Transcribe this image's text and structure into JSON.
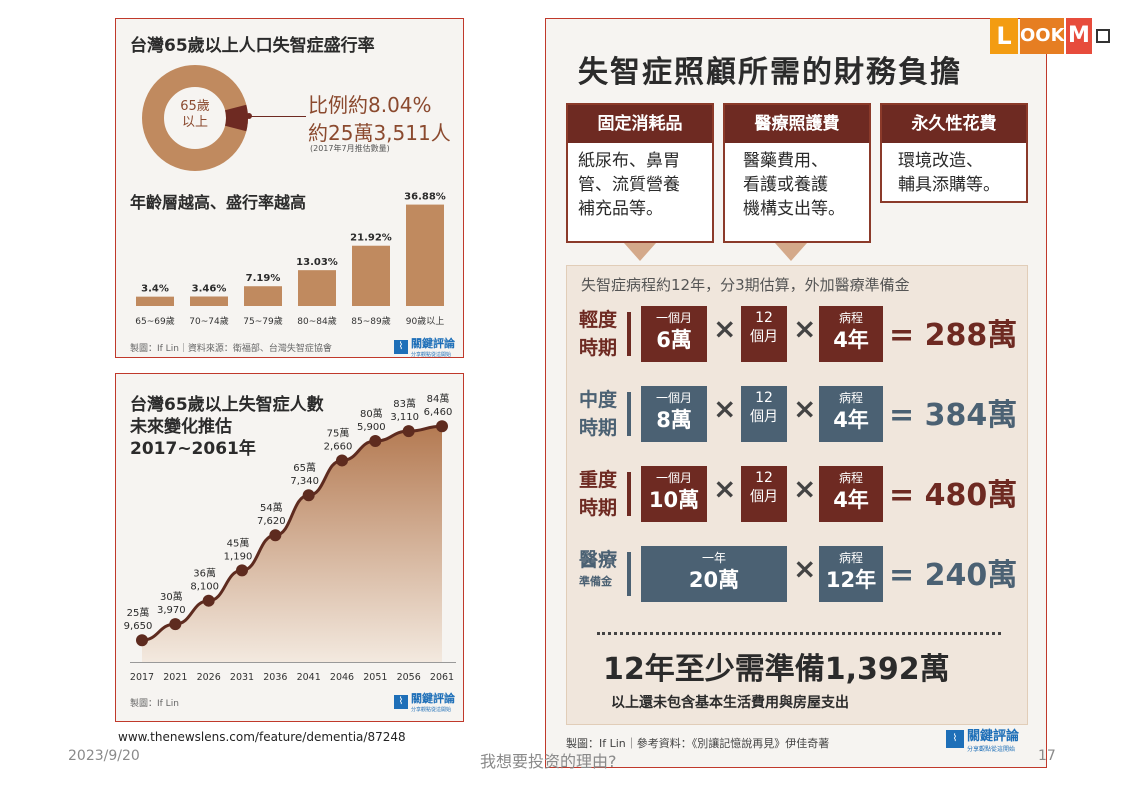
{
  "panel1": {
    "title": "台灣65歲以上人口失智症盛行率",
    "donut_center_label": "65歲\n以上",
    "ratio_text": "比例約8.04%",
    "count_text": "約25萬3,511人",
    "estimate_note": "(2017年7月推估數量)",
    "subtitle": "年齡層越高、盛行率越高",
    "footer": "製圖：If Lin｜資料來源：衛福部、台灣失智症協會",
    "logo_name": "關鍵評論",
    "logo_sub": "分享觀點從這開始",
    "colors": {
      "bar": "#c08a5f",
      "donut": "#c08a5f",
      "highlight": "#6e2a22"
    }
  },
  "panel2": {
    "title_line1": "台灣65歲以上失智症人數",
    "title_line2": "未來變化推估",
    "title_line3": "2017~2061年",
    "footer": "製圖：If Lin",
    "logo_name": "關鍵評論",
    "logo_sub": "分享觀點從這開始"
  },
  "chart_data": [
    {
      "type": "bar",
      "title": "年齡層越高、盛行率越高",
      "categories": [
        "65~69歲",
        "70~74歲",
        "75~79歲",
        "80~84歲",
        "85~89歲",
        "90歲以上"
      ],
      "values": [
        3.4,
        3.46,
        7.19,
        13.03,
        21.92,
        36.88
      ],
      "value_labels": [
        "3.4%",
        "3.46%",
        "7.19%",
        "13.03%",
        "21.92%",
        "36.88%"
      ],
      "unit": "%",
      "ylim": [
        0,
        40
      ]
    },
    {
      "type": "pie",
      "labels": [
        "65歲以上"
      ],
      "values": [
        8.04
      ],
      "unit": "%"
    },
    {
      "type": "area",
      "title": "台灣65歲以上失智症人數 未來變化推估 2017~2061年",
      "x": [
        "2017",
        "2021",
        "2026",
        "2031",
        "2036",
        "2041",
        "2046",
        "2051",
        "2056",
        "2061"
      ],
      "values": [
        259650,
        303970,
        368100,
        451190,
        547620,
        657340,
        752660,
        805900,
        833110,
        846460
      ],
      "labels_top": [
        "25萬",
        "30萬",
        "36萬",
        "45萬",
        "54萬",
        "65萬",
        "75萬",
        "80萬",
        "83萬",
        "84萬"
      ],
      "labels_bottom": [
        "9,650",
        "3,970",
        "8,100",
        "1,190",
        "7,620",
        "7,340",
        "2,660",
        "5,900",
        "3,110",
        "6,460"
      ],
      "ylim": [
        200000,
        880000
      ]
    }
  ],
  "panel3": {
    "title": "失智症照顧所需的財務負擔",
    "categories": [
      {
        "head": "固定消耗品",
        "body": [
          "紙尿布、鼻胃",
          "管、流質營養",
          "補充品等。"
        ]
      },
      {
        "head": "醫療照護費",
        "body": [
          "醫藥費用、",
          "看護或養護",
          "機構支出等。"
        ]
      },
      {
        "head": "永久性花費",
        "body": [
          "環境改造、",
          "輔具添購等。"
        ]
      }
    ],
    "calc_subtitle": "失智症病程約12年，分3期估算，外加醫療準備金",
    "rows": [
      {
        "label1": "輕度",
        "label2": "時期",
        "monthly_small": "一個月",
        "monthly": "6萬",
        "months_small": "12",
        "months": "個月",
        "duration_small": "病程",
        "duration": "4年",
        "result": "= 288萬"
      },
      {
        "label1": "中度",
        "label2": "時期",
        "monthly_small": "一個月",
        "monthly": "8萬",
        "months_small": "12",
        "months": "個月",
        "duration_small": "病程",
        "duration": "4年",
        "result": "= 384萬"
      },
      {
        "label1": "重度",
        "label2": "時期",
        "monthly_small": "一個月",
        "monthly": "10萬",
        "months_small": "12",
        "months": "個月",
        "duration_small": "病程",
        "duration": "4年",
        "result": "= 480萬"
      },
      {
        "label1": "醫療",
        "label2": "準備金",
        "yearly_small": "一年",
        "yearly": "20萬",
        "duration_small": "病程",
        "duration": "12年",
        "result": "= 240萬"
      }
    ],
    "times": "×",
    "total": "12年至少需準備1,392萬",
    "note": "以上還未包含基本生活費用與房屋支出",
    "footer": "製圖：If Lin｜參考資料：《別讓記憶說再見》伊佳奇著",
    "logo_name": "關鍵評論",
    "logo_sub": "分享觀點從這開始",
    "colors": {
      "dark_red": "#6e2a22",
      "slate": "#4b6173"
    }
  },
  "source_url": "www.thenewslens.com/feature/dementia/87248",
  "slide": {
    "date": "2023/9/20",
    "title": "我想要投资的理由?",
    "page": "17"
  },
  "watermark": "LOOKM"
}
